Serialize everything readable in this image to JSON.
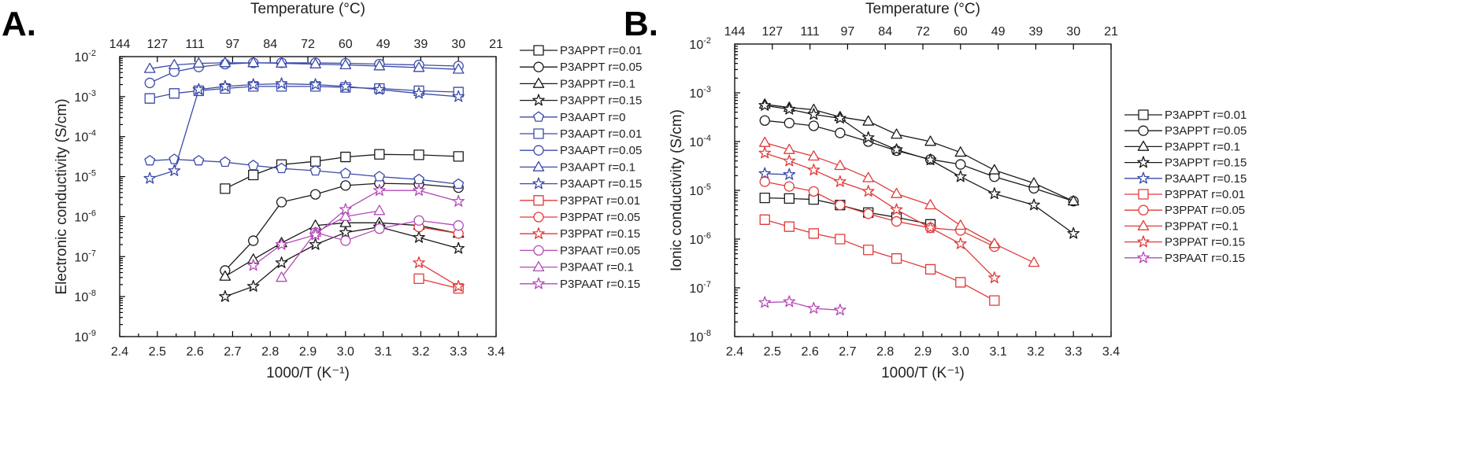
{
  "chart_data": [
    {
      "panel_label": "A.",
      "type": "scatter",
      "xlabel": "1000/T (K⁻¹)",
      "ylabel": "Electronic conductivity (S/cm)",
      "top_xlabel": "Temperature (°C)",
      "xlim": [
        2.4,
        3.4
      ],
      "ylim_log10": [
        -9,
        -2
      ],
      "x_ticks": [
        "2.4",
        "2.5",
        "2.6",
        "2.7",
        "2.8",
        "2.9",
        "3.0",
        "3.1",
        "3.2",
        "3.3",
        "3.4"
      ],
      "y_ticks": [
        {
          "base": "10",
          "exp": "-9"
        },
        {
          "base": "10",
          "exp": "-8"
        },
        {
          "base": "10",
          "exp": "-7"
        },
        {
          "base": "10",
          "exp": "-6"
        },
        {
          "base": "10",
          "exp": "-5"
        },
        {
          "base": "10",
          "exp": "-4"
        },
        {
          "base": "10",
          "exp": "-3"
        },
        {
          "base": "10",
          "exp": "-2"
        }
      ],
      "top_ticks": [
        {
          "x": 2.4,
          "label": "144"
        },
        {
          "x": 2.5,
          "label": "127"
        },
        {
          "x": 2.6,
          "label": "111"
        },
        {
          "x": 2.7,
          "label": "97"
        },
        {
          "x": 2.8,
          "label": "84"
        },
        {
          "x": 2.9,
          "label": "72"
        },
        {
          "x": 3.0,
          "label": "60"
        },
        {
          "x": 3.1,
          "label": "49"
        },
        {
          "x": 3.2,
          "label": "39"
        },
        {
          "x": 3.3,
          "label": "30"
        },
        {
          "x": 3.4,
          "label": "21"
        }
      ],
      "series": [
        {
          "name": "P3APPT r=0.01",
          "color": "#1a1a1a",
          "marker": "square",
          "x": [
            2.68,
            2.755,
            2.83,
            2.92,
            3.0,
            3.09,
            3.195,
            3.3
          ],
          "y": [
            5e-06,
            1.1e-05,
            2e-05,
            2.4e-05,
            3.1e-05,
            3.6e-05,
            3.5e-05,
            3.2e-05
          ]
        },
        {
          "name": "P3APPT r=0.05",
          "color": "#1a1a1a",
          "marker": "circle",
          "x": [
            2.68,
            2.755,
            2.83,
            2.92,
            3.0,
            3.09,
            3.195,
            3.3
          ],
          "y": [
            4.5e-08,
            2.5e-07,
            2.3e-06,
            3.6e-06,
            6e-06,
            6.8e-06,
            6.5e-06,
            5.3e-06
          ]
        },
        {
          "name": "P3APPT r=0.1",
          "color": "#1a1a1a",
          "marker": "triangle",
          "x": [
            2.68,
            2.755,
            2.83,
            2.92,
            3.0,
            3.09,
            3.195,
            3.3
          ],
          "y": [
            3.2e-08,
            8.5e-08,
            2.2e-07,
            6e-07,
            7e-07,
            7e-07,
            6e-07,
            3.8e-07
          ]
        },
        {
          "name": "P3APPT r=0.15",
          "color": "#1a1a1a",
          "marker": "star",
          "x": [
            2.68,
            2.755,
            2.83,
            2.92,
            3.0,
            3.09,
            3.195,
            3.3
          ],
          "y": [
            1e-08,
            1.8e-08,
            7e-08,
            2e-07,
            4e-07,
            5.5e-07,
            3e-07,
            1.6e-07
          ]
        },
        {
          "name": "P3AAPT r=0",
          "color": "#3a4aa8",
          "marker": "pentagon",
          "x": [
            2.48,
            2.545,
            2.61,
            2.68,
            2.755,
            2.83,
            2.92,
            3.0,
            3.09,
            3.195,
            3.3
          ],
          "y": [
            2.5e-05,
            2.7e-05,
            2.5e-05,
            2.3e-05,
            1.9e-05,
            1.6e-05,
            1.4e-05,
            1.2e-05,
            1e-05,
            8.5e-06,
            6.5e-06
          ]
        },
        {
          "name": "P3AAPT r=0.01",
          "color": "#3a4aa8",
          "marker": "square",
          "x": [
            2.48,
            2.545,
            2.61,
            2.68,
            2.755,
            2.83,
            2.92,
            3.0,
            3.09,
            3.195,
            3.3
          ],
          "y": [
            0.0009,
            0.0012,
            0.0014,
            0.0016,
            0.0018,
            0.0018,
            0.0018,
            0.0017,
            0.0016,
            0.0014,
            0.0013
          ]
        },
        {
          "name": "P3AAPT r=0.05",
          "color": "#3a4aa8",
          "marker": "circle",
          "x": [
            2.48,
            2.545,
            2.61,
            2.68,
            2.755,
            2.83,
            2.92,
            3.0,
            3.09,
            3.195,
            3.3
          ],
          "y": [
            0.0022,
            0.0042,
            0.0055,
            0.0065,
            0.007,
            0.007,
            0.007,
            0.0068,
            0.0065,
            0.0062,
            0.0058
          ]
        },
        {
          "name": "P3AAPT r=0.1",
          "color": "#3a4aa8",
          "marker": "triangle",
          "x": [
            2.48,
            2.545,
            2.61,
            2.68,
            2.755,
            2.83,
            2.92,
            3.0,
            3.09,
            3.195,
            3.3
          ],
          "y": [
            0.005,
            0.0062,
            0.0068,
            0.007,
            0.007,
            0.0068,
            0.0065,
            0.0062,
            0.0058,
            0.0053,
            0.0048
          ]
        },
        {
          "name": "P3AAPT r=0.15",
          "color": "#3a4aa8",
          "marker": "star",
          "x": [
            2.48,
            2.545,
            2.61,
            2.68,
            2.755,
            2.83,
            2.92,
            3.0,
            3.09,
            3.195,
            3.3
          ],
          "y": [
            9e-06,
            1.4e-05,
            0.0015,
            0.0018,
            0.002,
            0.0021,
            0.002,
            0.0018,
            0.0015,
            0.0012,
            0.001
          ]
        },
        {
          "name": "P3PPAT r=0.01",
          "color": "#e03a3a",
          "marker": "square",
          "x": [
            3.195,
            3.3
          ],
          "y": [
            2.8e-08,
            1.6e-08
          ]
        },
        {
          "name": "P3PPAT r=0.05",
          "color": "#e03a3a",
          "marker": "circle",
          "x": [
            3.195,
            3.3
          ],
          "y": [
            5.5e-07,
            3.8e-07
          ]
        },
        {
          "name": "P3PPAT r=0.15",
          "color": "#e03a3a",
          "marker": "star",
          "x": [
            3.195,
            3.3
          ],
          "y": [
            7e-08,
            1.8e-08
          ]
        },
        {
          "name": "P3PAAT r=0.05",
          "color": "#b34ab8",
          "marker": "circle",
          "x": [
            2.92,
            3.0,
            3.09,
            3.195,
            3.3
          ],
          "y": [
            4e-07,
            2.5e-07,
            5e-07,
            8e-07,
            6e-07
          ]
        },
        {
          "name": "P3PAAT r=0.1",
          "color": "#b34ab8",
          "marker": "triangle",
          "x": [
            2.83,
            2.92,
            3.0,
            3.09
          ],
          "y": [
            3e-08,
            4e-07,
            1e-06,
            1.4e-06
          ]
        },
        {
          "name": "P3PAAT r=0.15",
          "color": "#b34ab8",
          "marker": "star",
          "x": [
            2.755,
            2.83,
            2.92,
            3.0,
            3.09,
            3.195,
            3.3
          ],
          "y": [
            6e-08,
            2e-07,
            3.5e-07,
            1.5e-06,
            4.5e-06,
            4.5e-06,
            2.4e-06
          ]
        }
      ]
    },
    {
      "panel_label": "B.",
      "type": "scatter",
      "xlabel": "1000/T (K⁻¹)",
      "ylabel": "Ionic conductivity (S/cm)",
      "top_xlabel": "Temperature (°C)",
      "xlim": [
        2.4,
        3.4
      ],
      "ylim_log10": [
        -8,
        -2
      ],
      "x_ticks": [
        "2.4",
        "2.5",
        "2.6",
        "2.7",
        "2.8",
        "2.9",
        "3.0",
        "3.1",
        "3.2",
        "3.3",
        "3.4"
      ],
      "y_ticks": [
        {
          "base": "10",
          "exp": "-8"
        },
        {
          "base": "10",
          "exp": "-7"
        },
        {
          "base": "10",
          "exp": "-6"
        },
        {
          "base": "10",
          "exp": "-5"
        },
        {
          "base": "10",
          "exp": "-4"
        },
        {
          "base": "10",
          "exp": "-3"
        },
        {
          "base": "10",
          "exp": "-2"
        }
      ],
      "top_ticks": [
        {
          "x": 2.4,
          "label": "144"
        },
        {
          "x": 2.5,
          "label": "127"
        },
        {
          "x": 2.6,
          "label": "111"
        },
        {
          "x": 2.7,
          "label": "97"
        },
        {
          "x": 2.8,
          "label": "84"
        },
        {
          "x": 2.9,
          "label": "72"
        },
        {
          "x": 3.0,
          "label": "60"
        },
        {
          "x": 3.1,
          "label": "49"
        },
        {
          "x": 3.2,
          "label": "39"
        },
        {
          "x": 3.3,
          "label": "30"
        },
        {
          "x": 3.4,
          "label": "21"
        }
      ],
      "series": [
        {
          "name": "P3APPT r=0.01",
          "color": "#1a1a1a",
          "marker": "square",
          "x": [
            2.48,
            2.545,
            2.61,
            2.68,
            2.755,
            2.83,
            2.92
          ],
          "y": [
            7e-06,
            6.8e-06,
            6.5e-06,
            5e-06,
            3.5e-06,
            2.8e-06,
            2e-06
          ]
        },
        {
          "name": "P3APPT r=0.05",
          "color": "#1a1a1a",
          "marker": "circle",
          "x": [
            2.48,
            2.545,
            2.61,
            2.68,
            2.755,
            2.83,
            2.92,
            3.0,
            3.09,
            3.195,
            3.3
          ],
          "y": [
            0.00027,
            0.00024,
            0.00021,
            0.00015,
            0.0001,
            6.5e-05,
            4.3e-05,
            3.4e-05,
            1.9e-05,
            1.1e-05,
            6e-06
          ]
        },
        {
          "name": "P3APPT r=0.1",
          "color": "#1a1a1a",
          "marker": "triangle",
          "x": [
            2.48,
            2.545,
            2.61,
            2.68,
            2.755,
            2.83,
            2.92,
            3.0,
            3.09,
            3.195,
            3.3
          ],
          "y": [
            0.00058,
            0.0005,
            0.00045,
            0.00032,
            0.00026,
            0.00014,
            0.0001,
            6e-05,
            2.6e-05,
            1.4e-05,
            6e-06
          ]
        },
        {
          "name": "P3APPT r=0.15",
          "color": "#1a1a1a",
          "marker": "star",
          "x": [
            2.48,
            2.545,
            2.61,
            2.68,
            2.755,
            2.83,
            2.92,
            3.0,
            3.09,
            3.195,
            3.3
          ],
          "y": [
            0.00055,
            0.00046,
            0.00036,
            0.0003,
            0.00012,
            6.8e-05,
            4.2e-05,
            1.9e-05,
            8.5e-06,
            5e-06,
            1.3e-06
          ]
        },
        {
          "name": "P3AAPT r=0.15",
          "color": "#3a4aa8",
          "marker": "star",
          "x": [
            2.48,
            2.545
          ],
          "y": [
            2.2e-05,
            2.1e-05
          ]
        },
        {
          "name": "P3PPAT r=0.01",
          "color": "#e03a3a",
          "marker": "square",
          "x": [
            2.48,
            2.545,
            2.61,
            2.68,
            2.755,
            2.83,
            2.92,
            3.0,
            3.09
          ],
          "y": [
            2.5e-06,
            1.8e-06,
            1.3e-06,
            1e-06,
            6e-07,
            4e-07,
            2.4e-07,
            1.3e-07,
            5.5e-08
          ]
        },
        {
          "name": "P3PPAT r=0.05",
          "color": "#e03a3a",
          "marker": "circle",
          "x": [
            2.48,
            2.545,
            2.61,
            2.68,
            2.755,
            2.83,
            2.92,
            3.0,
            3.09
          ],
          "y": [
            1.5e-05,
            1.2e-05,
            9.5e-06,
            5e-06,
            3.3e-06,
            2.3e-06,
            1.7e-06,
            1.5e-06,
            7e-07
          ]
        },
        {
          "name": "P3PPAT r=0.1",
          "color": "#e03a3a",
          "marker": "triangle",
          "x": [
            2.48,
            2.545,
            2.61,
            2.68,
            2.755,
            2.83,
            2.92,
            3.0,
            3.09,
            3.195
          ],
          "y": [
            9.5e-05,
            6.8e-05,
            5e-05,
            3.2e-05,
            1.8e-05,
            8.5e-06,
            5e-06,
            1.9e-06,
            8e-07,
            3.3e-07
          ]
        },
        {
          "name": "P3PPAT r=0.15",
          "color": "#e03a3a",
          "marker": "star",
          "x": [
            2.48,
            2.545,
            2.61,
            2.68,
            2.755,
            2.83,
            2.92,
            3.0,
            3.09
          ],
          "y": [
            5.8e-05,
            4e-05,
            2.6e-05,
            1.5e-05,
            9.5e-06,
            4e-06,
            1.7e-06,
            8e-07,
            1.6e-07
          ]
        },
        {
          "name": "P3PAAT r=0.15",
          "color": "#b34ab8",
          "marker": "star",
          "x": [
            2.48,
            2.545,
            2.61,
            2.68
          ],
          "y": [
            5e-08,
            5.2e-08,
            3.8e-08,
            3.5e-08
          ]
        }
      ]
    }
  ]
}
